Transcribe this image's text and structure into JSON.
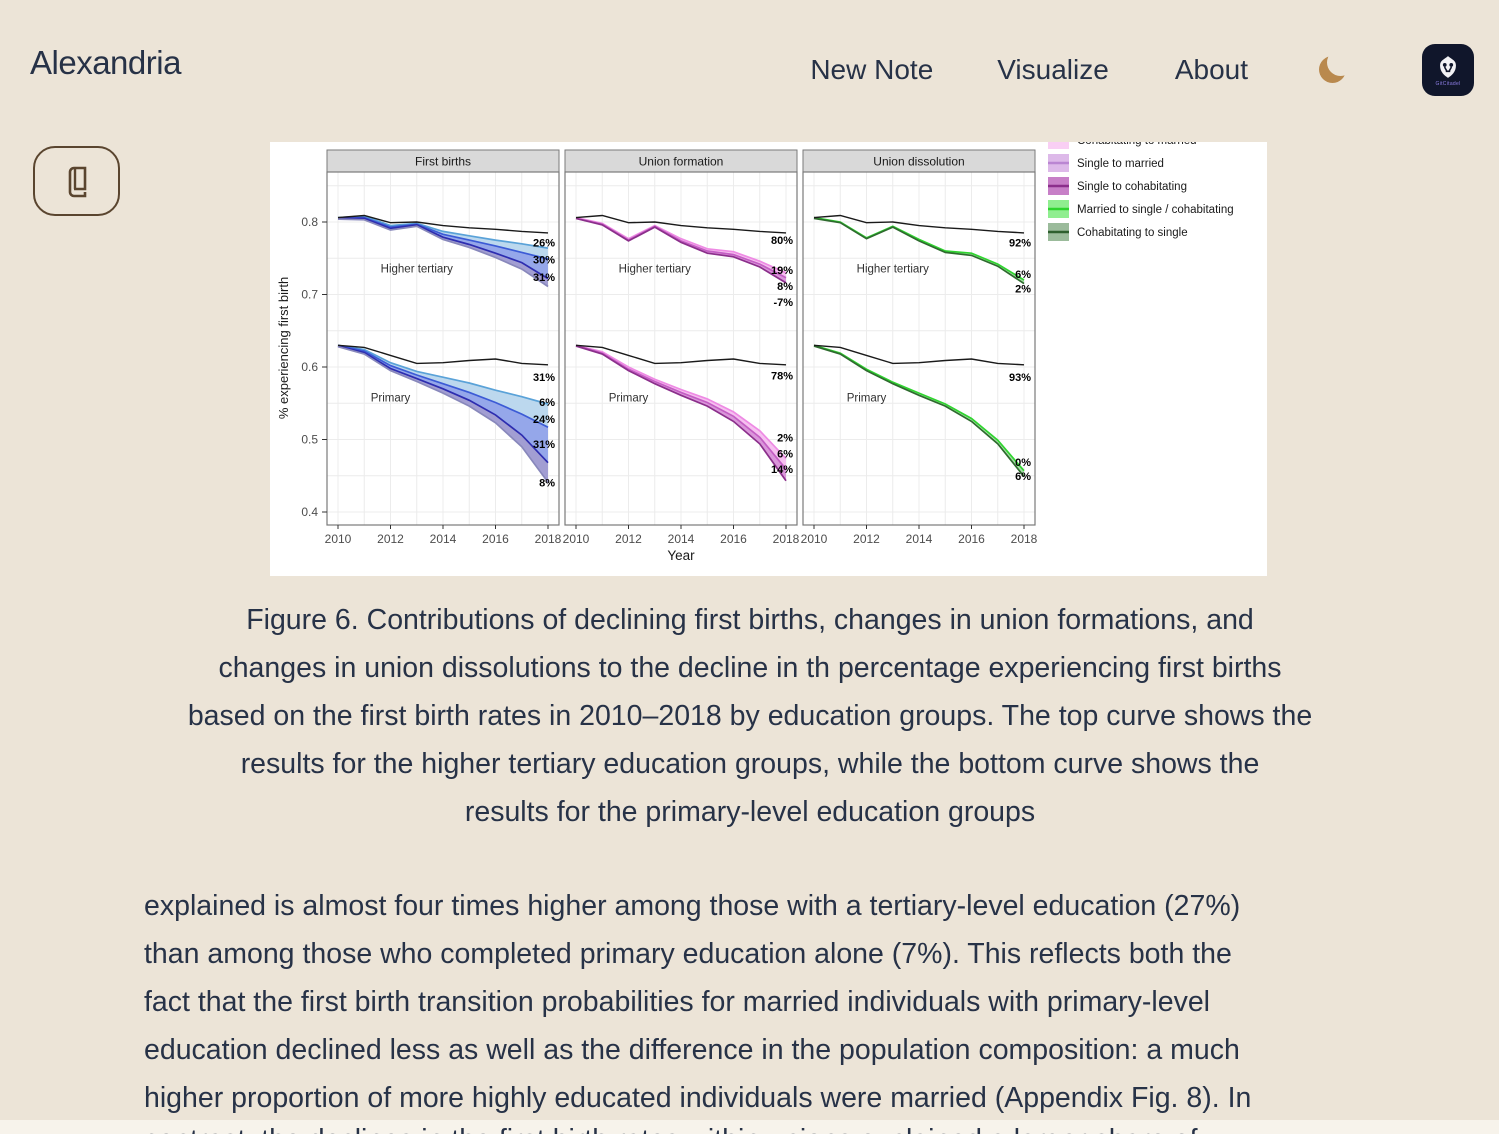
{
  "header": {
    "brand": "Alexandria",
    "nav": [
      {
        "label": "New Note"
      },
      {
        "label": "Visualize"
      },
      {
        "label": "About"
      }
    ]
  },
  "logo": {
    "text": "GitCitadel"
  },
  "icons": {
    "theme_toggle": "moon-icon",
    "reader": "book-icon"
  },
  "colors": {
    "background": "#ECE4D7",
    "text": "#273247",
    "moon_gold": "#B9894E",
    "logo_background": "#10162B",
    "reader_border": "#5A452F"
  },
  "figure": {
    "caption_lines": [
      "Figure 6. Contributions of declining first births, changes in union formations, and",
      "changes in union dissolutions to the decline in th percentage experiencing first births",
      "based on the first birth rates in 2010–2018 by education groups. The top curve shows the",
      "results for the higher tertiary education groups, while the bottom curve shows the",
      "results for the primary-level education groups"
    ]
  },
  "article": {
    "paragraph_lines": [
      "explained is almost four times higher among those with a tertiary-level education (27%)",
      "than among those who completed primary education alone (7%). This reflects both the",
      "fact that the first birth transition probabilities for married individuals with primary-level",
      "education declined less as well as the difference in the population composition: a much",
      "higher proportion of more highly educated individuals were married (Appendix Fig. 8). In"
    ],
    "partial_line": "contrast, the declines in the first birth rates within unions explained a larger share of"
  },
  "chart_data": {
    "type": "line",
    "x": [
      2010,
      2011,
      2012,
      2013,
      2014,
      2015,
      2016,
      2017,
      2018
    ],
    "xticks": [
      2010,
      2012,
      2014,
      2016,
      2018
    ],
    "yticks": [
      0.4,
      0.5,
      0.6,
      0.7,
      0.8
    ],
    "ylim": [
      0.385,
      0.87
    ],
    "xlabel": "Year",
    "ylabel": "% experiencing first birth",
    "grid": true,
    "legend_position": "right-top",
    "legend": [
      {
        "label": "Cohabitating to married",
        "fill": "#F9CFF4",
        "line": "#EE90E6"
      },
      {
        "label": "Single to married",
        "fill": "#DDB9E9",
        "line": "#BA86D2"
      },
      {
        "label": "Single to cohabitating",
        "fill": "#C77FC7",
        "line": "#8B2F8B"
      },
      {
        "label": "Married to single / cohabitating",
        "fill": "#90EE90",
        "line": "#2FD42F"
      },
      {
        "label": "Cohabitating to single",
        "fill": "#9BBB9B",
        "line": "#2E5F2E"
      }
    ],
    "panels": [
      {
        "title": "First births",
        "groups": [
          {
            "name": "Higher tertiary",
            "label_x": 2013,
            "label_v": 0.736,
            "reference": {
              "values": [
                0.806,
                0.809,
                0.799,
                0.8,
                0.795,
                0.792,
                0.79,
                0.787,
                0.785
              ],
              "label": null,
              "label_v": null
            },
            "fills": [
              "#BCD8EE",
              "#95A7EA",
              "#A29ED2"
            ],
            "lines": [
              {
                "color": "#5AA2D8",
                "values": [
                  0.806,
                  0.808,
                  0.795,
                  0.798,
                  0.787,
                  0.781,
                  0.775,
                  0.77,
                  0.764
                ],
                "label": "26%",
                "label_v": 0.772
              },
              {
                "color": "#3C5BD6",
                "values": [
                  0.805,
                  0.806,
                  0.793,
                  0.797,
                  0.783,
                  0.775,
                  0.767,
                  0.758,
                  0.749
                ],
                "label": "30%",
                "label_v": 0.748
              },
              {
                "color": "#2D2DB0",
                "values": [
                  0.805,
                  0.805,
                  0.791,
                  0.796,
                  0.779,
                  0.769,
                  0.757,
                  0.744,
                  0.722
                ],
                "label": "31%",
                "label_v": 0.724
              },
              {
                "color": "#8888BB",
                "values": [
                  0.804,
                  0.803,
                  0.789,
                  0.794,
                  0.776,
                  0.765,
                  0.751,
                  0.735,
                  0.711
                ],
                "label": null,
                "label_v": null
              }
            ]
          },
          {
            "name": "Primary",
            "label_x": 2012,
            "label_v": 0.558,
            "reference": {
              "values": [
                0.63,
                0.627,
                0.616,
                0.605,
                0.606,
                0.609,
                0.611,
                0.605,
                0.603
              ],
              "label": "31%",
              "label_v": 0.586
            },
            "fills": [
              "#BCD8EE",
              "#95A7EA",
              "#A29ED2"
            ],
            "lines": [
              {
                "color": "#5AA2D8",
                "values": [
                  0.63,
                  0.624,
                  0.606,
                  0.594,
                  0.586,
                  0.578,
                  0.568,
                  0.559,
                  0.549
                ],
                "label": "6%",
                "label_v": 0.552
              },
              {
                "color": "#3C5BD6",
                "values": [
                  0.63,
                  0.622,
                  0.602,
                  0.589,
                  0.577,
                  0.565,
                  0.551,
                  0.535,
                  0.517
                ],
                "label": "24%",
                "label_v": 0.528
              },
              {
                "color": "#2D2DB0",
                "values": [
                  0.629,
                  0.62,
                  0.598,
                  0.584,
                  0.57,
                  0.554,
                  0.534,
                  0.506,
                  0.468
                ],
                "label": "31%",
                "label_v": 0.494
              },
              {
                "color": "#8888BB",
                "values": [
                  0.628,
                  0.618,
                  0.595,
                  0.58,
                  0.564,
                  0.546,
                  0.523,
                  0.49,
                  0.441
                ],
                "label": "8%",
                "label_v": 0.441
              }
            ]
          }
        ]
      },
      {
        "title": "Union formation",
        "groups": [
          {
            "name": "Higher tertiary",
            "label_x": 2013,
            "label_v": 0.736,
            "reference": {
              "values": [
                0.806,
                0.809,
                0.799,
                0.8,
                0.795,
                0.792,
                0.79,
                0.787,
                0.785
              ],
              "label": "80%",
              "label_v": 0.775
            },
            "fills": [
              "#F6C0F0",
              "#DA96DA"
            ],
            "lines": [
              {
                "color": "#EE8AE4",
                "values": [
                  0.806,
                  0.798,
                  0.777,
                  0.795,
                  0.777,
                  0.763,
                  0.759,
                  0.746,
                  0.73
                ],
                "label": "19%",
                "label_v": 0.734
              },
              {
                "color": "#C45EC4",
                "values": [
                  0.805,
                  0.797,
                  0.775,
                  0.794,
                  0.774,
                  0.76,
                  0.755,
                  0.742,
                  0.723
                ],
                "label": "8%",
                "label_v": 0.712
              },
              {
                "color": "#8B2F8B",
                "values": [
                  0.805,
                  0.796,
                  0.774,
                  0.793,
                  0.772,
                  0.757,
                  0.752,
                  0.738,
                  0.716
                ],
                "label": "-7%",
                "label_v": 0.69
              }
            ]
          },
          {
            "name": "Primary",
            "label_x": 2012,
            "label_v": 0.558,
            "reference": {
              "values": [
                0.63,
                0.627,
                0.616,
                0.605,
                0.606,
                0.609,
                0.611,
                0.605,
                0.603
              ],
              "label": "78%",
              "label_v": 0.588
            },
            "fills": [
              "#F6C0F0",
              "#DA96DA"
            ],
            "lines": [
              {
                "color": "#EE8AE4",
                "values": [
                  0.63,
                  0.621,
                  0.6,
                  0.583,
                  0.569,
                  0.556,
                  0.538,
                  0.512,
                  0.474
                ],
                "label": "2%",
                "label_v": 0.503
              },
              {
                "color": "#C45EC4",
                "values": [
                  0.63,
                  0.619,
                  0.597,
                  0.58,
                  0.565,
                  0.551,
                  0.532,
                  0.503,
                  0.459
                ],
                "label": "6%",
                "label_v": 0.481
              },
              {
                "color": "#8B2F8B",
                "values": [
                  0.629,
                  0.618,
                  0.595,
                  0.577,
                  0.561,
                  0.546,
                  0.525,
                  0.494,
                  0.443
                ],
                "label": "14%",
                "label_v": 0.459
              }
            ]
          }
        ]
      },
      {
        "title": "Union dissolution",
        "groups": [
          {
            "name": "Higher tertiary",
            "label_x": 2013,
            "label_v": 0.736,
            "reference": {
              "values": [
                0.806,
                0.809,
                0.799,
                0.8,
                0.795,
                0.792,
                0.79,
                0.787,
                0.785
              ],
              "label": "92%",
              "label_v": 0.772
            },
            "fills": [
              "#A8DFA8"
            ],
            "lines": [
              {
                "color": "#2FD42F",
                "values": [
                  0.806,
                  0.8,
                  0.778,
                  0.794,
                  0.776,
                  0.76,
                  0.757,
                  0.742,
                  0.72
                ],
                "label": "6%",
                "label_v": 0.728
              },
              {
                "color": "#2E6B2E",
                "values": [
                  0.805,
                  0.799,
                  0.777,
                  0.793,
                  0.774,
                  0.758,
                  0.754,
                  0.739,
                  0.715
                ],
                "label": "2%",
                "label_v": 0.708
              }
            ]
          },
          {
            "name": "Primary",
            "label_x": 2012,
            "label_v": 0.558,
            "reference": {
              "values": [
                0.63,
                0.627,
                0.616,
                0.605,
                0.606,
                0.609,
                0.611,
                0.605,
                0.603
              ],
              "label": "93%",
              "label_v": 0.586
            },
            "fills": [
              "#A8DFA8"
            ],
            "lines": [
              {
                "color": "#2FD42F",
                "values": [
                  0.63,
                  0.619,
                  0.597,
                  0.579,
                  0.564,
                  0.549,
                  0.529,
                  0.499,
                  0.457
                ],
                "label": "0%",
                "label_v": 0.469
              },
              {
                "color": "#2E6B2E",
                "values": [
                  0.629,
                  0.618,
                  0.595,
                  0.577,
                  0.561,
                  0.546,
                  0.525,
                  0.494,
                  0.449
                ],
                "label": "6%",
                "label_v": 0.45
              }
            ]
          }
        ]
      }
    ]
  }
}
